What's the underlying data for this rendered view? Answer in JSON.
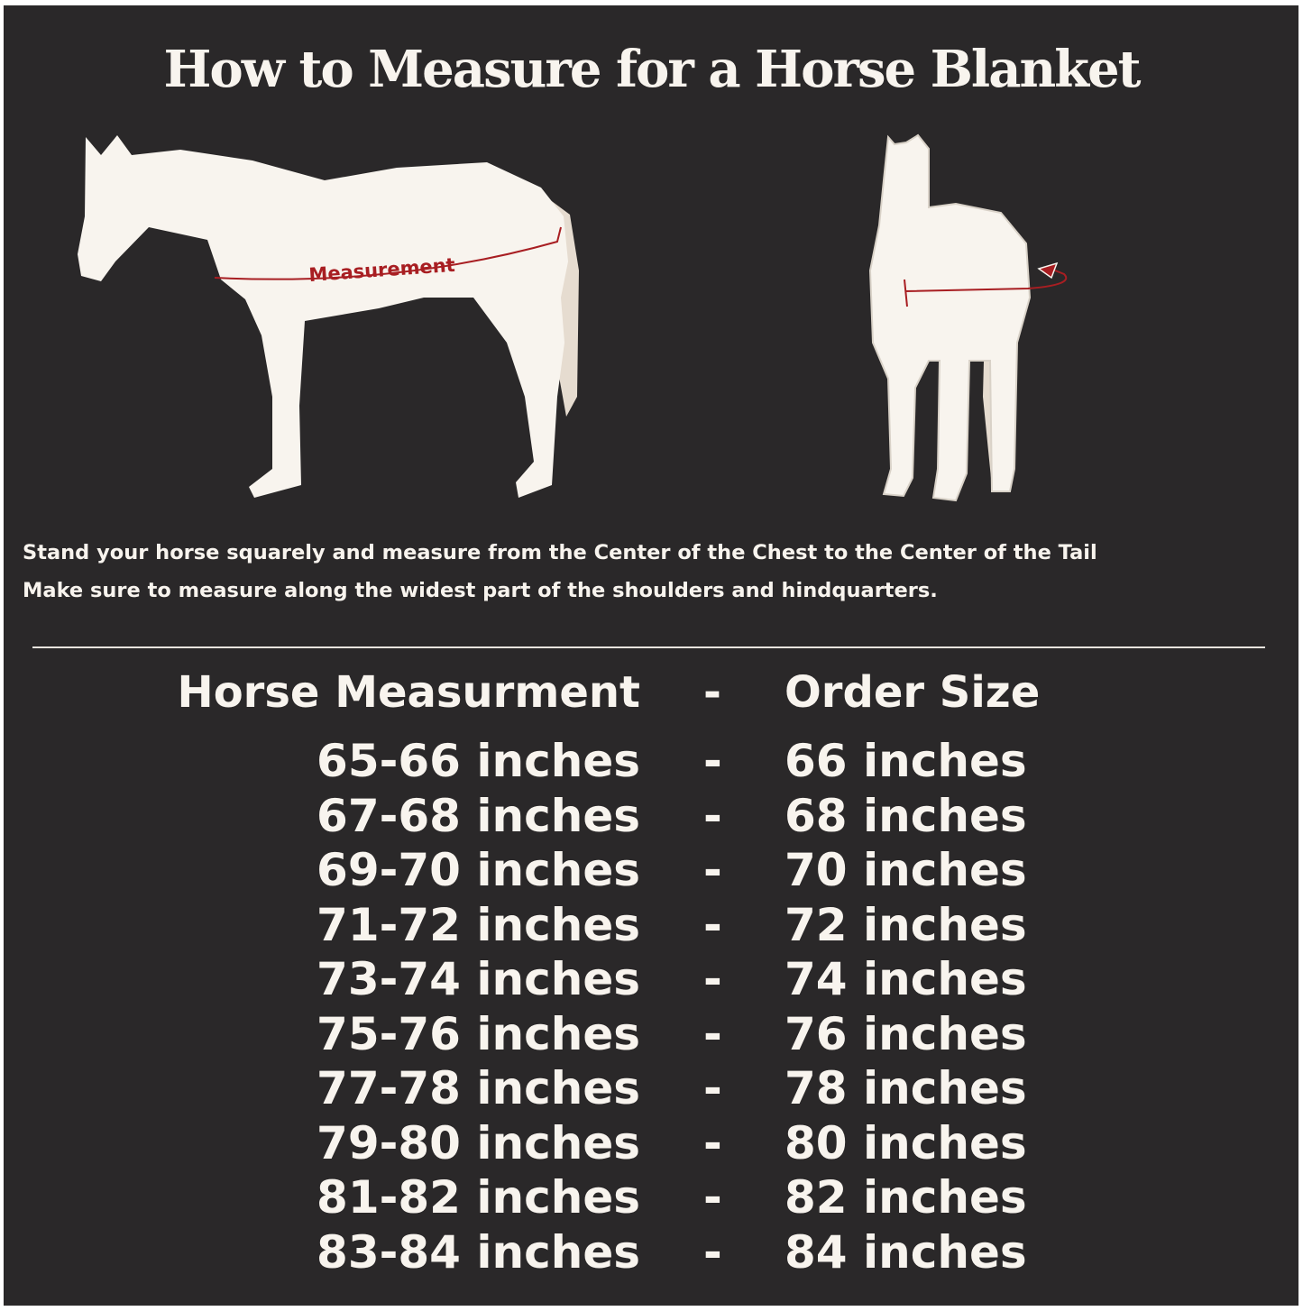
{
  "title": "How to Measure for a Horse Blanket",
  "diagram": {
    "side_label": "Measurement",
    "colors": {
      "background": "#2a2829",
      "horse": "#f8f4ee",
      "tail": "#e6dcd0",
      "measure_line": "#a81e22"
    }
  },
  "instructions": [
    "Stand your horse squarely and measure from the Center of the Chest to the Center of the Tail",
    "Make sure to measure along the widest part of the shoulders and hindquarters."
  ],
  "table": {
    "headers": {
      "measurement": "Horse Measurment",
      "separator": "-",
      "size": "Order Size"
    },
    "rows": [
      {
        "measurement": "65-66 inches",
        "separator": "-",
        "size": "66 inches"
      },
      {
        "measurement": "67-68 inches",
        "separator": "-",
        "size": "68 inches"
      },
      {
        "measurement": "69-70 inches",
        "separator": "-",
        "size": "70 inches"
      },
      {
        "measurement": "71-72 inches",
        "separator": "-",
        "size": "72 inches"
      },
      {
        "measurement": "73-74 inches",
        "separator": "-",
        "size": "74 inches"
      },
      {
        "measurement": "75-76 inches",
        "separator": "-",
        "size": "76 inches"
      },
      {
        "measurement": "77-78 inches",
        "separator": "-",
        "size": "78 inches"
      },
      {
        "measurement": "79-80 inches",
        "separator": "-",
        "size": "80 inches"
      },
      {
        "measurement": "81-82 inches",
        "separator": "-",
        "size": "82 inches"
      },
      {
        "measurement": "83-84 inches",
        "separator": "-",
        "size": "84 inches"
      }
    ]
  }
}
